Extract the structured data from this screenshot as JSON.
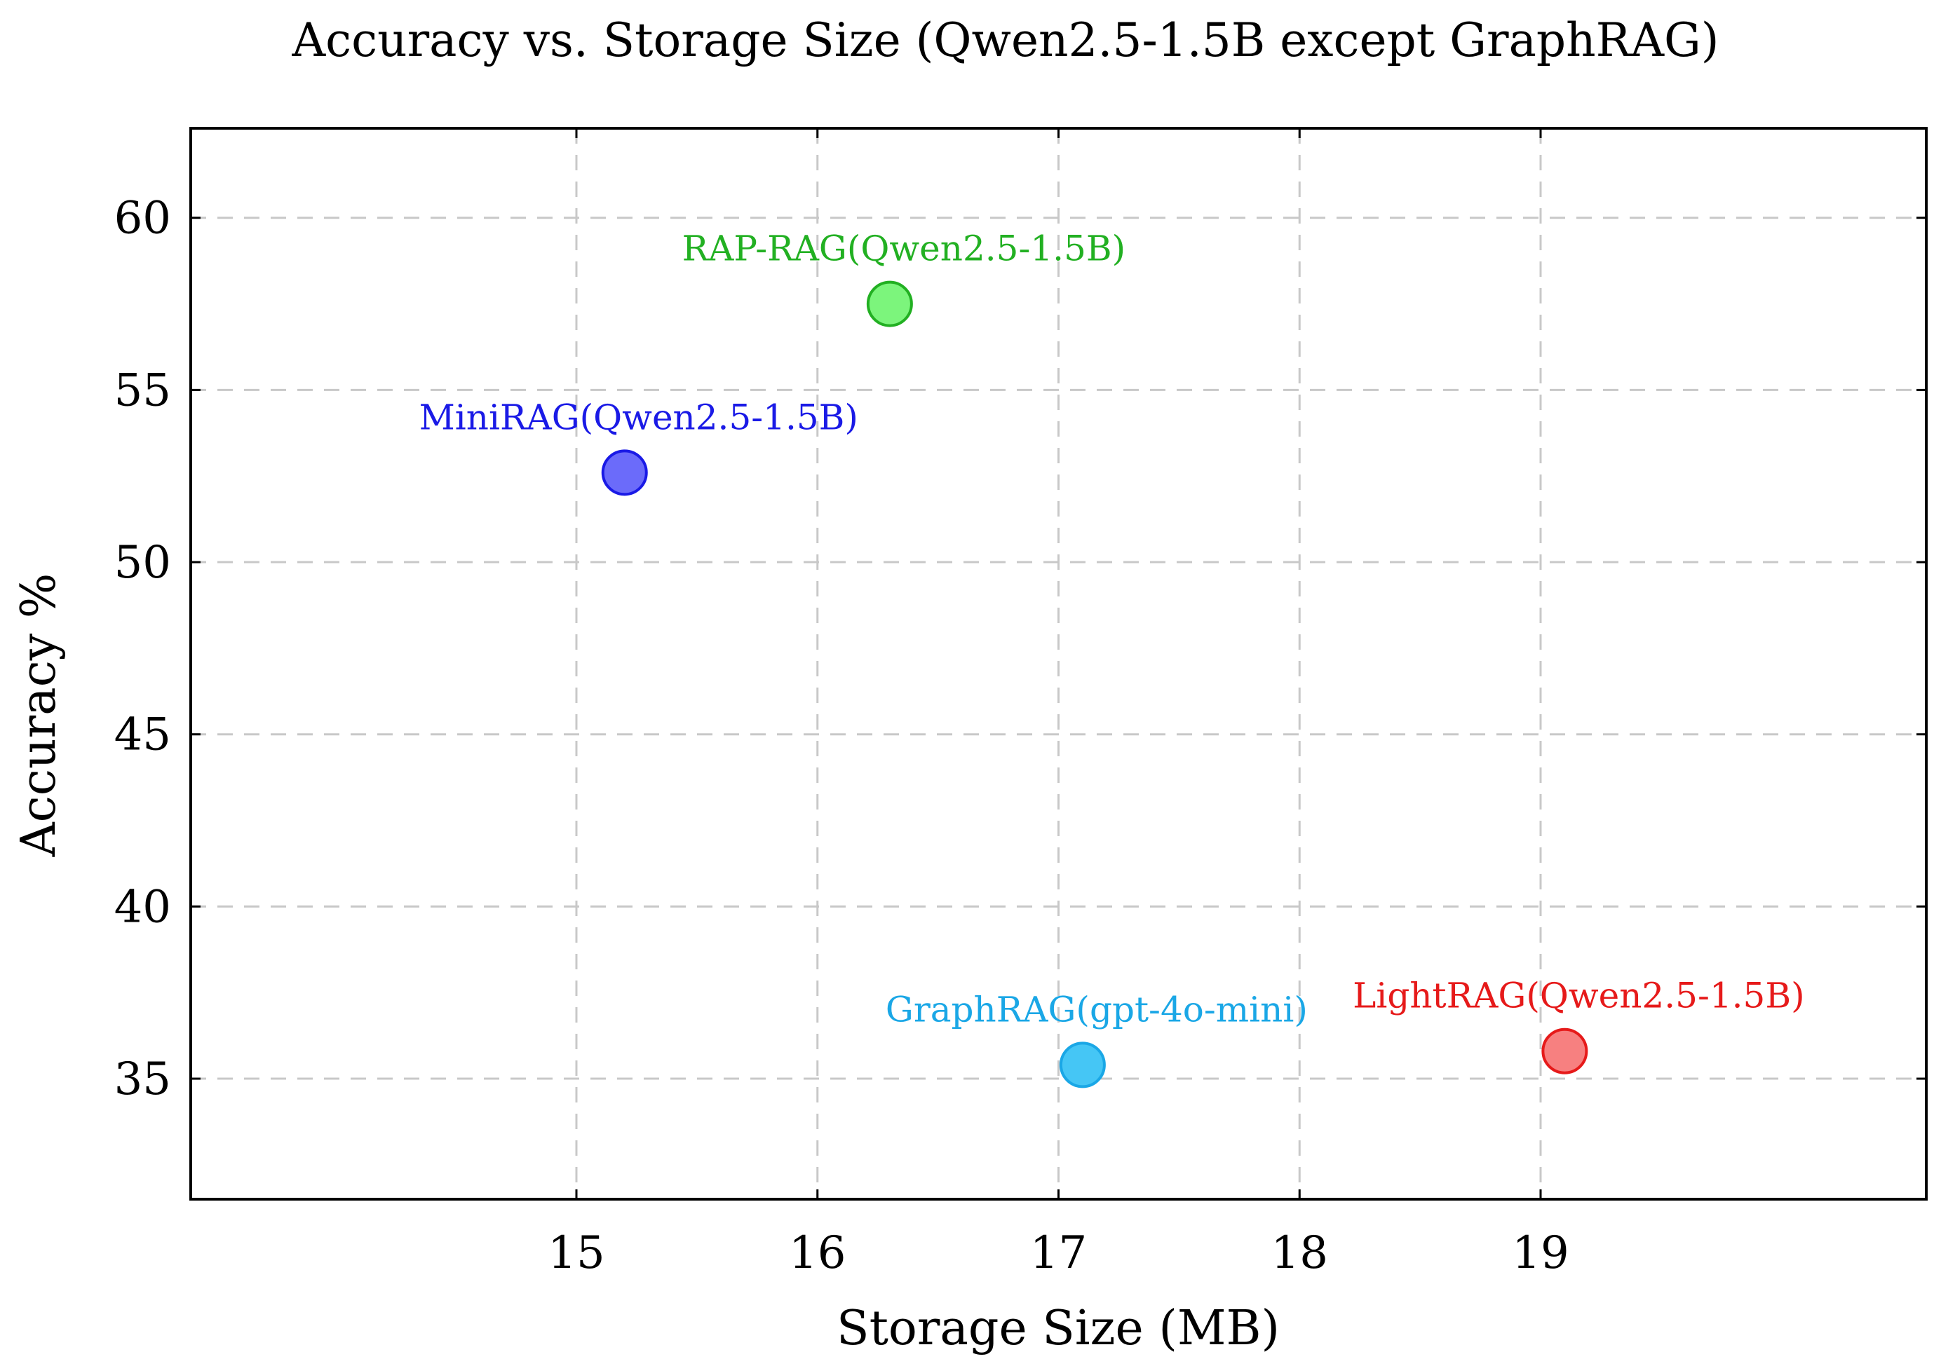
{
  "chart_data": {
    "type": "scatter",
    "title": "Accuracy vs. Storage Size (Qwen2.5-1.5B except GraphRAG)",
    "xlabel": "Storage Size (MB)",
    "ylabel": "Accuracy %",
    "xlim": [
      13.4,
      20.6
    ],
    "ylim": [
      31.5,
      62.6
    ],
    "xticks": [
      15,
      16,
      17,
      18,
      19
    ],
    "yticks": [
      35,
      40,
      45,
      50,
      55,
      60
    ],
    "grid": true,
    "legend": "none",
    "points": [
      {
        "label": "RAP-RAG(Qwen2.5-1.5B)",
        "x": 16.3,
        "y": 57.5,
        "color": "#22b022",
        "fill": "#7cf57c"
      },
      {
        "label": "MiniRAG(Qwen2.5-1.5B)",
        "x": 15.2,
        "y": 52.6,
        "color": "#1a1ae6",
        "fill": "#6b6bfa"
      },
      {
        "label": "GraphRAG(gpt-4o-mini)",
        "x": 17.1,
        "y": 35.4,
        "color": "#1aa7e6",
        "fill": "#45c6f5"
      },
      {
        "label": "LightRAG(Qwen2.5-1.5B)",
        "x": 19.1,
        "y": 35.8,
        "color": "#e61a1a",
        "fill": "#f78080"
      }
    ]
  }
}
